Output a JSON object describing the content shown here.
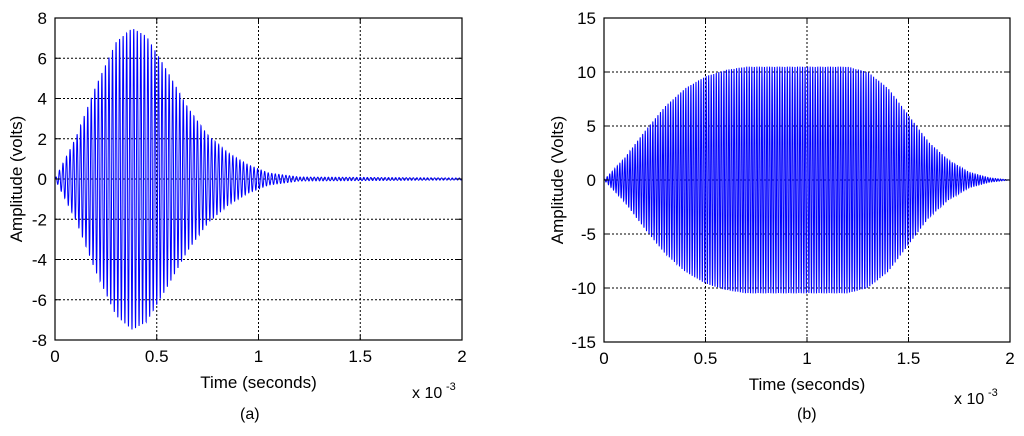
{
  "chart_data": [
    {
      "type": "line",
      "panel_caption": "(a)",
      "xlabel": "Time (seconds)",
      "ylabel": "Amplitude (volts)",
      "x_multiplier": "x 10",
      "x_multiplier_exponent": "-3",
      "xlim": [
        0,
        2
      ],
      "ylim": [
        -8,
        8
      ],
      "x_ticks": [
        0,
        0.5,
        1,
        1.5,
        2
      ],
      "x_tick_labels": [
        "0",
        "0.5",
        "1",
        "1.5",
        "2"
      ],
      "y_ticks": [
        -8,
        -6,
        -4,
        -2,
        0,
        2,
        4,
        6,
        8
      ],
      "y_tick_labels": [
        "-8",
        "-6",
        "-4",
        "-2",
        "0",
        "2",
        "4",
        "6",
        "8"
      ],
      "grid": true,
      "line_color": "#0000ff",
      "series": [
        {
          "description_values": "envelope amplitude vs time (x 10^-3 s)",
          "envelope_x": [
            0,
            0.1,
            0.2,
            0.3,
            0.38,
            0.45,
            0.55,
            0.65,
            0.75,
            0.85,
            0.95,
            1.05,
            1.2,
            1.5,
            2.0
          ],
          "envelope_y": [
            0,
            2.0,
            4.6,
            6.8,
            7.5,
            7.1,
            5.4,
            3.6,
            2.2,
            1.3,
            0.7,
            0.3,
            0.1,
            0.08,
            0.05
          ],
          "carrier_cycles": 115
        }
      ]
    },
    {
      "type": "line",
      "panel_caption": "(b)",
      "xlabel": "Time (seconds)",
      "ylabel": "Amplitude (Volts)",
      "x_multiplier": "x 10",
      "x_multiplier_exponent": "-3",
      "xlim": [
        0,
        2
      ],
      "ylim": [
        -15,
        15
      ],
      "x_ticks": [
        0,
        0.5,
        1,
        1.5,
        2
      ],
      "x_tick_labels": [
        "0",
        "0.5",
        "1",
        "1.5",
        "2"
      ],
      "y_ticks": [
        -15,
        -10,
        -5,
        0,
        5,
        10,
        15
      ],
      "y_tick_labels": [
        "-15",
        "-10",
        "-5",
        "0",
        "5",
        "10",
        "15"
      ],
      "grid": true,
      "line_color": "#0000ff",
      "series": [
        {
          "description_values": "envelope amplitude vs time (x 10^-3 s)",
          "envelope_x": [
            0,
            0.1,
            0.2,
            0.3,
            0.4,
            0.5,
            0.6,
            0.7,
            0.8,
            0.9,
            1.0,
            1.1,
            1.2,
            1.3,
            1.4,
            1.5,
            1.6,
            1.7,
            1.8,
            1.9,
            2.0
          ],
          "envelope_y": [
            0,
            2.0,
            4.5,
            6.8,
            8.5,
            9.6,
            10.2,
            10.5,
            10.5,
            10.5,
            10.5,
            10.5,
            10.5,
            10.0,
            8.5,
            6.0,
            3.5,
            1.8,
            0.7,
            0.2,
            0.0
          ],
          "carrier_cycles": 160
        }
      ]
    }
  ]
}
